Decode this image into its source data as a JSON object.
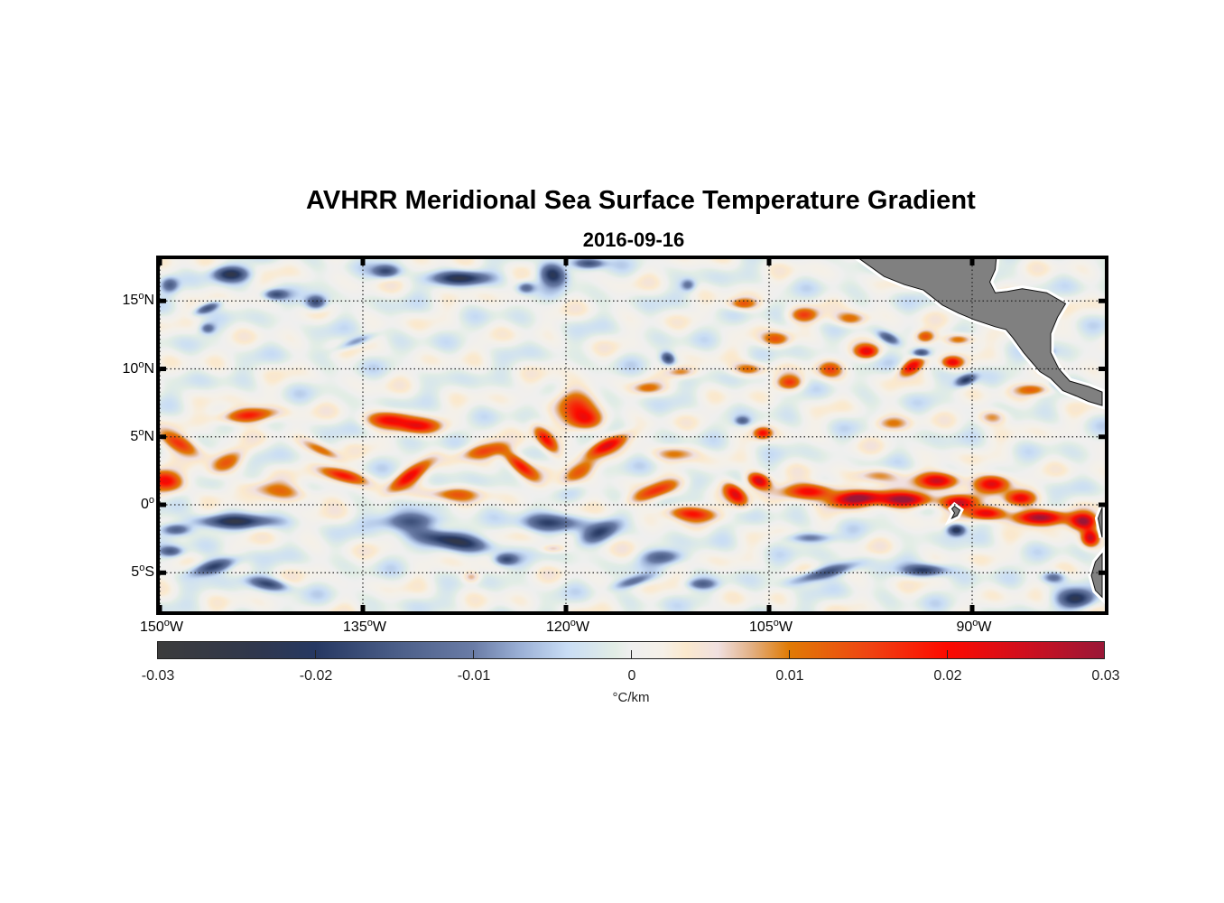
{
  "title": "AVHRR Meridional Sea Surface Temperature Gradient",
  "subtitle": "2016-09-16",
  "map": {
    "lon_range": [
      -150,
      -80.4
    ],
    "lat_range": [
      -8,
      18.2
    ],
    "lat_ticks": [
      {
        "value": 15,
        "num": "15",
        "hemi": "N"
      },
      {
        "value": 10,
        "num": "10",
        "hemi": "N"
      },
      {
        "value": 5,
        "num": "5",
        "hemi": "N"
      },
      {
        "value": 0,
        "num": "0",
        "hemi": ""
      },
      {
        "value": -5,
        "num": "5",
        "hemi": "S"
      }
    ],
    "lon_ticks": [
      {
        "value": -150,
        "num": "150",
        "hemi": "W"
      },
      {
        "value": -135,
        "num": "135",
        "hemi": "W"
      },
      {
        "value": -120,
        "num": "120",
        "hemi": "W"
      },
      {
        "value": -105,
        "num": "105",
        "hemi": "W"
      },
      {
        "value": -90,
        "num": "90",
        "hemi": "W"
      }
    ],
    "degree_symbol": "o",
    "land_color": "#808080",
    "features": [
      {
        "lon": -148.5,
        "lat": 4.5,
        "a": 0.018,
        "sx": 1.6,
        "sy": 0.6,
        "rot": 25
      },
      {
        "lon": -143.5,
        "lat": 6.6,
        "a": 0.02,
        "sx": 2.0,
        "sy": 0.5,
        "rot": -5
      },
      {
        "lon": -149.5,
        "lat": 1.8,
        "a": 0.021,
        "sx": 1.2,
        "sy": 0.7,
        "rot": 10
      },
      {
        "lon": -145,
        "lat": 3.2,
        "a": 0.01,
        "sx": 1.5,
        "sy": 0.6,
        "rot": -30
      },
      {
        "lon": -141,
        "lat": 1.0,
        "a": 0.011,
        "sx": 2.8,
        "sy": 0.6,
        "rot": 8
      },
      {
        "lon": -136.5,
        "lat": 2.2,
        "a": 0.02,
        "sx": 1.6,
        "sy": 0.45,
        "rot": 15
      },
      {
        "lon": -138,
        "lat": 4.0,
        "a": 0.012,
        "sx": 1.4,
        "sy": 0.4,
        "rot": 25
      },
      {
        "lon": -133,
        "lat": 6.3,
        "a": 0.019,
        "sx": 1.6,
        "sy": 0.55,
        "rot": 0
      },
      {
        "lon": -131,
        "lat": 5.8,
        "a": 0.018,
        "sx": 1.5,
        "sy": 0.5,
        "rot": 0
      },
      {
        "lon": -131.5,
        "lat": 2.2,
        "a": 0.02,
        "sx": 1.6,
        "sy": 0.5,
        "rot": -35
      },
      {
        "lon": -128.5,
        "lat": 0.8,
        "a": 0.012,
        "sx": 2.0,
        "sy": 0.5,
        "rot": 0
      },
      {
        "lon": -126,
        "lat": 4.0,
        "a": 0.013,
        "sx": 1.8,
        "sy": 0.5,
        "rot": -10
      },
      {
        "lon": -123.5,
        "lat": 3.0,
        "a": 0.021,
        "sx": 1.4,
        "sy": 0.5,
        "rot": 40
      },
      {
        "lon": -121.5,
        "lat": 4.8,
        "a": 0.02,
        "sx": 1.2,
        "sy": 0.5,
        "rot": 50
      },
      {
        "lon": -119.5,
        "lat": 7.5,
        "a": 0.014,
        "sx": 1.5,
        "sy": 1.2,
        "rot": 30
      },
      {
        "lon": -118.5,
        "lat": 6.2,
        "a": 0.016,
        "sx": 1.2,
        "sy": 0.7,
        "rot": 0
      },
      {
        "lon": -117,
        "lat": 4.4,
        "a": 0.019,
        "sx": 1.6,
        "sy": 0.45,
        "rot": -25
      },
      {
        "lon": -119,
        "lat": 2.5,
        "a": 0.012,
        "sx": 1.8,
        "sy": 0.6,
        "rot": -35
      },
      {
        "lon": -113.5,
        "lat": 1.0,
        "a": 0.015,
        "sx": 1.8,
        "sy": 0.5,
        "rot": -20
      },
      {
        "lon": -110.8,
        "lat": -0.6,
        "a": 0.018,
        "sx": 1.8,
        "sy": 0.5,
        "rot": 5
      },
      {
        "lon": -107.5,
        "lat": 0.8,
        "a": 0.022,
        "sx": 1.0,
        "sy": 0.55,
        "rot": 45
      },
      {
        "lon": -105.8,
        "lat": 1.8,
        "a": 0.027,
        "sx": 0.8,
        "sy": 0.5,
        "rot": 20
      },
      {
        "lon": -112,
        "lat": 3.8,
        "a": 0.01,
        "sx": 1.4,
        "sy": 0.5,
        "rot": 0
      },
      {
        "lon": -105.5,
        "lat": 5.3,
        "a": 0.018,
        "sx": 0.6,
        "sy": 0.4,
        "rot": 0
      },
      {
        "lon": -102,
        "lat": 1.0,
        "a": 0.024,
        "sx": 1.8,
        "sy": 0.55,
        "rot": 0
      },
      {
        "lon": -98.5,
        "lat": 0.5,
        "a": 0.031,
        "sx": 1.7,
        "sy": 0.5,
        "rot": -5
      },
      {
        "lon": -95,
        "lat": 0.4,
        "a": 0.032,
        "sx": 1.8,
        "sy": 0.5,
        "rot": 0
      },
      {
        "lon": -92.5,
        "lat": 1.8,
        "a": 0.025,
        "sx": 1.4,
        "sy": 0.55,
        "rot": 0
      },
      {
        "lon": -91,
        "lat": 0.2,
        "a": 0.026,
        "sx": 1.2,
        "sy": 0.5,
        "rot": 0
      },
      {
        "lon": -88.5,
        "lat": 1.6,
        "a": 0.025,
        "sx": 1.2,
        "sy": 0.6,
        "rot": 0
      },
      {
        "lon": -86.5,
        "lat": 0.5,
        "a": 0.02,
        "sx": 1.0,
        "sy": 0.5,
        "rot": 0
      },
      {
        "lon": -85,
        "lat": -0.9,
        "a": 0.031,
        "sx": 1.8,
        "sy": 0.5,
        "rot": 0
      },
      {
        "lon": -81.8,
        "lat": -1.2,
        "a": 0.028,
        "sx": 0.9,
        "sy": 0.55,
        "rot": 0
      },
      {
        "lon": -81.3,
        "lat": -2.4,
        "a": 0.026,
        "sx": 0.6,
        "sy": 0.6,
        "rot": 0
      },
      {
        "lon": -89,
        "lat": -0.6,
        "a": 0.024,
        "sx": 1.3,
        "sy": 0.45,
        "rot": 0
      },
      {
        "lon": -97,
        "lat": 2.2,
        "a": 0.01,
        "sx": 1.5,
        "sy": 0.5,
        "rot": 0
      },
      {
        "lon": -97.8,
        "lat": 11.3,
        "a": 0.02,
        "sx": 0.8,
        "sy": 0.45,
        "rot": 0
      },
      {
        "lon": -94.5,
        "lat": 10.2,
        "a": 0.022,
        "sx": 0.9,
        "sy": 0.45,
        "rot": -30
      },
      {
        "lon": -93.5,
        "lat": 12.4,
        "a": 0.016,
        "sx": 0.7,
        "sy": 0.45,
        "rot": 0
      },
      {
        "lon": -91.5,
        "lat": 10.5,
        "a": 0.021,
        "sx": 0.7,
        "sy": 0.4,
        "rot": 0
      },
      {
        "lon": -91,
        "lat": 12.2,
        "a": 0.015,
        "sx": 1.0,
        "sy": 0.4,
        "rot": 0
      },
      {
        "lon": -102.5,
        "lat": 14.0,
        "a": 0.014,
        "sx": 1.0,
        "sy": 0.5,
        "rot": 0
      },
      {
        "lon": -99,
        "lat": 13.7,
        "a": 0.013,
        "sx": 1.2,
        "sy": 0.5,
        "rot": 0
      },
      {
        "lon": -103.5,
        "lat": 9.0,
        "a": 0.015,
        "sx": 0.9,
        "sy": 0.5,
        "rot": 0
      },
      {
        "lon": -100.5,
        "lat": 10.0,
        "a": 0.014,
        "sx": 0.9,
        "sy": 0.6,
        "rot": 0
      },
      {
        "lon": -104.5,
        "lat": 12.2,
        "a": 0.013,
        "sx": 1.0,
        "sy": 0.5,
        "rot": 0
      },
      {
        "lon": -106.5,
        "lat": 10.0,
        "a": 0.013,
        "sx": 1.1,
        "sy": 0.45,
        "rot": 0
      },
      {
        "lon": -111.5,
        "lat": 9.8,
        "a": 0.011,
        "sx": 1.0,
        "sy": 0.4,
        "rot": 0
      },
      {
        "lon": -107,
        "lat": 14.8,
        "a": 0.013,
        "sx": 1.0,
        "sy": 0.4,
        "rot": 0
      },
      {
        "lon": -85.5,
        "lat": 8.5,
        "a": 0.012,
        "sx": 1.2,
        "sy": 0.4,
        "rot": 0
      },
      {
        "lon": -88.5,
        "lat": 6.5,
        "a": 0.011,
        "sx": 1.0,
        "sy": 0.5,
        "rot": 0
      },
      {
        "lon": -96,
        "lat": 6.0,
        "a": 0.01,
        "sx": 1.2,
        "sy": 0.5,
        "rot": 0
      },
      {
        "lon": -87,
        "lat": 13.3,
        "a": 0.013,
        "sx": 0.7,
        "sy": 0.35,
        "rot": 0
      },
      {
        "lon": -114,
        "lat": 8.6,
        "a": 0.009,
        "sx": 1.0,
        "sy": 0.4,
        "rot": 0
      },
      {
        "lon": -121,
        "lat": -3.2,
        "a": 0.008,
        "sx": 0.8,
        "sy": 0.3,
        "rot": 0
      },
      {
        "lon": -127,
        "lat": -5.3,
        "a": 0.009,
        "sx": 0.6,
        "sy": 0.4,
        "rot": 0
      },
      {
        "lon": -144.5,
        "lat": -1.2,
        "a": -0.021,
        "sx": 2.6,
        "sy": 0.45,
        "rot": 0
      },
      {
        "lon": -148.8,
        "lat": -1.8,
        "a": -0.017,
        "sx": 1.0,
        "sy": 0.4,
        "rot": 0
      },
      {
        "lon": -146,
        "lat": -4.5,
        "a": -0.02,
        "sx": 1.6,
        "sy": 0.45,
        "rot": -15
      },
      {
        "lon": -142,
        "lat": -5.8,
        "a": -0.017,
        "sx": 1.4,
        "sy": 0.4,
        "rot": 10
      },
      {
        "lon": -149.2,
        "lat": -3.4,
        "a": -0.014,
        "sx": 0.8,
        "sy": 0.35,
        "rot": 0
      },
      {
        "lon": -131.5,
        "lat": -1.2,
        "a": -0.016,
        "sx": 2.2,
        "sy": 0.6,
        "rot": 0
      },
      {
        "lon": -128.5,
        "lat": -2.6,
        "a": -0.022,
        "sx": 2.6,
        "sy": 0.55,
        "rot": 10
      },
      {
        "lon": -124.5,
        "lat": -4.0,
        "a": -0.017,
        "sx": 0.8,
        "sy": 0.4,
        "rot": 0
      },
      {
        "lon": -121,
        "lat": -1.3,
        "a": -0.018,
        "sx": 2.0,
        "sy": 0.6,
        "rot": 0
      },
      {
        "lon": -117.5,
        "lat": -2.0,
        "a": -0.015,
        "sx": 1.4,
        "sy": 0.6,
        "rot": -25
      },
      {
        "lon": -112.8,
        "lat": -3.8,
        "a": -0.014,
        "sx": 1.3,
        "sy": 0.5,
        "rot": 0
      },
      {
        "lon": -115,
        "lat": -5.6,
        "a": -0.013,
        "sx": 1.3,
        "sy": 0.35,
        "rot": -15
      },
      {
        "lon": -110,
        "lat": -5.8,
        "a": -0.012,
        "sx": 1.0,
        "sy": 0.35,
        "rot": 0
      },
      {
        "lon": -101,
        "lat": -5.0,
        "a": -0.018,
        "sx": 2.2,
        "sy": 0.4,
        "rot": -15
      },
      {
        "lon": -93.5,
        "lat": -4.8,
        "a": -0.02,
        "sx": 1.4,
        "sy": 0.4,
        "rot": 0
      },
      {
        "lon": -91.2,
        "lat": -1.8,
        "a": -0.024,
        "sx": 0.6,
        "sy": 0.4,
        "rot": 0
      },
      {
        "lon": -102,
        "lat": -2.4,
        "a": -0.011,
        "sx": 1.6,
        "sy": 0.35,
        "rot": 0
      },
      {
        "lon": -82.3,
        "lat": -6.9,
        "a": -0.022,
        "sx": 1.2,
        "sy": 0.6,
        "rot": 0
      },
      {
        "lon": -84,
        "lat": -5.3,
        "a": -0.014,
        "sx": 0.8,
        "sy": 0.4,
        "rot": 0
      },
      {
        "lon": -144.8,
        "lat": 17.0,
        "a": -0.022,
        "sx": 1.2,
        "sy": 0.5,
        "rot": 0
      },
      {
        "lon": -138.5,
        "lat": 14.9,
        "a": -0.02,
        "sx": 0.7,
        "sy": 0.5,
        "rot": 0
      },
      {
        "lon": -146.5,
        "lat": 14.5,
        "a": -0.016,
        "sx": 0.9,
        "sy": 0.3,
        "rot": -20
      },
      {
        "lon": -141.5,
        "lat": 15.5,
        "a": -0.016,
        "sx": 0.8,
        "sy": 0.35,
        "rot": 0
      },
      {
        "lon": -149.3,
        "lat": 16.2,
        "a": -0.014,
        "sx": 0.6,
        "sy": 0.5,
        "rot": 0
      },
      {
        "lon": -133.3,
        "lat": 17.2,
        "a": -0.018,
        "sx": 0.9,
        "sy": 0.45,
        "rot": 0
      },
      {
        "lon": -127.8,
        "lat": 16.7,
        "a": -0.022,
        "sx": 1.8,
        "sy": 0.45,
        "rot": 0
      },
      {
        "lon": -121,
        "lat": 17.0,
        "a": -0.024,
        "sx": 0.9,
        "sy": 0.7,
        "rot": 20
      },
      {
        "lon": -118.3,
        "lat": 17.8,
        "a": -0.017,
        "sx": 1.0,
        "sy": 0.35,
        "rot": 0
      },
      {
        "lon": -135.6,
        "lat": 12.0,
        "a": -0.01,
        "sx": 1.4,
        "sy": 0.3,
        "rot": -20
      },
      {
        "lon": -146.5,
        "lat": 13.0,
        "a": -0.012,
        "sx": 0.5,
        "sy": 0.35,
        "rot": 0
      },
      {
        "lon": -123,
        "lat": 16.0,
        "a": -0.014,
        "sx": 0.6,
        "sy": 0.4,
        "rot": 0
      },
      {
        "lon": -111,
        "lat": 16.2,
        "a": -0.011,
        "sx": 0.5,
        "sy": 0.4,
        "rot": 0
      },
      {
        "lon": -112.5,
        "lat": 10.8,
        "a": -0.019,
        "sx": 0.5,
        "sy": 0.4,
        "rot": 30
      },
      {
        "lon": -96.2,
        "lat": 12.3,
        "a": -0.016,
        "sx": 0.8,
        "sy": 0.35,
        "rot": 25
      },
      {
        "lon": -93.8,
        "lat": 11.2,
        "a": -0.019,
        "sx": 0.6,
        "sy": 0.3,
        "rot": 0
      },
      {
        "lon": -90.5,
        "lat": 9.2,
        "a": -0.02,
        "sx": 0.7,
        "sy": 0.35,
        "rot": -20
      },
      {
        "lon": -84.5,
        "lat": 11.3,
        "a": -0.01,
        "sx": 0.5,
        "sy": 0.3,
        "rot": 0
      },
      {
        "lon": -83.5,
        "lat": 8.9,
        "a": -0.011,
        "sx": 0.6,
        "sy": 0.3,
        "rot": 0
      },
      {
        "lon": -107,
        "lat": 6.2,
        "a": -0.012,
        "sx": 0.5,
        "sy": 0.3,
        "rot": 0
      }
    ],
    "land": [
      [
        [
          -98.6,
          18.3
        ],
        [
          -96.5,
          16.8
        ],
        [
          -95.0,
          16.2
        ],
        [
          -93.6,
          15.8
        ],
        [
          -92.2,
          14.7
        ],
        [
          -91.0,
          14.1
        ],
        [
          -89.8,
          13.6
        ],
        [
          -88.3,
          13.1
        ],
        [
          -87.5,
          12.9
        ],
        [
          -87.0,
          12.3
        ],
        [
          -86.2,
          11.2
        ],
        [
          -85.6,
          10.5
        ],
        [
          -85.0,
          9.8
        ],
        [
          -84.2,
          9.3
        ],
        [
          -83.3,
          8.4
        ],
        [
          -82.3,
          8.0
        ],
        [
          -81.4,
          7.6
        ],
        [
          -80.4,
          7.3
        ],
        [
          -80.4,
          8.3
        ],
        [
          -81.4,
          8.7
        ],
        [
          -82.8,
          9.1
        ],
        [
          -83.6,
          10.0
        ],
        [
          -84.2,
          11.2
        ],
        [
          -84.2,
          12.6
        ],
        [
          -83.7,
          13.8
        ],
        [
          -83.1,
          14.8
        ],
        [
          -84.5,
          15.6
        ],
        [
          -86.3,
          15.9
        ],
        [
          -87.4,
          15.7
        ],
        [
          -88.3,
          15.6
        ],
        [
          -88.7,
          16.4
        ],
        [
          -88.3,
          17.3
        ],
        [
          -88.2,
          18.3
        ]
      ],
      [
        [
          -80.4,
          -0.2
        ],
        [
          -80.7,
          -1.0
        ],
        [
          -80.4,
          -2.4
        ],
        [
          -80.4,
          -0.2
        ]
      ],
      [
        [
          -80.4,
          -3.6
        ],
        [
          -80.9,
          -4.2
        ],
        [
          -81.2,
          -5.2
        ],
        [
          -80.9,
          -6.3
        ],
        [
          -80.4,
          -6.8
        ],
        [
          -80.4,
          -3.6
        ]
      ],
      [
        [
          -91.3,
          -0.1
        ],
        [
          -90.9,
          -0.4
        ],
        [
          -91.1,
          -0.8
        ],
        [
          -91.5,
          -1.0
        ],
        [
          -91.3,
          -0.6
        ],
        [
          -91.5,
          -0.3
        ],
        [
          -91.3,
          -0.1
        ]
      ]
    ]
  },
  "colorbar": {
    "min": -0.03,
    "max": 0.03,
    "ticks": [
      "-0.03",
      "-0.02",
      "-0.01",
      "0",
      "0.01",
      "0.02",
      "0.03"
    ],
    "tick_values": [
      -0.03,
      -0.02,
      -0.01,
      0,
      0.01,
      0.02,
      0.03
    ],
    "unit_label": "°C/km",
    "colors": [
      {
        "v": -0.03,
        "c": "#3c3c3c"
      },
      {
        "v": -0.024,
        "c": "#30374c"
      },
      {
        "v": -0.02,
        "c": "#263862"
      },
      {
        "v": -0.015,
        "c": "#4a5d87"
      },
      {
        "v": -0.01,
        "c": "#6a7ca6"
      },
      {
        "v": -0.007,
        "c": "#9bb0d6"
      },
      {
        "v": -0.004,
        "c": "#c9ddf5"
      },
      {
        "v": -0.001,
        "c": "#e2ede5"
      },
      {
        "v": 0.0,
        "c": "#efefef"
      },
      {
        "v": 0.002,
        "c": "#f5f0e8"
      },
      {
        "v": 0.0035,
        "c": "#fbe9cd"
      },
      {
        "v": 0.0055,
        "c": "#f0e0e0"
      },
      {
        "v": 0.0075,
        "c": "#e3b38b"
      },
      {
        "v": 0.01,
        "c": "#e07b05"
      },
      {
        "v": 0.015,
        "c": "#ef4512"
      },
      {
        "v": 0.02,
        "c": "#fd0a00"
      },
      {
        "v": 0.025,
        "c": "#cf0f1e"
      },
      {
        "v": 0.03,
        "c": "#9a1737"
      }
    ]
  }
}
